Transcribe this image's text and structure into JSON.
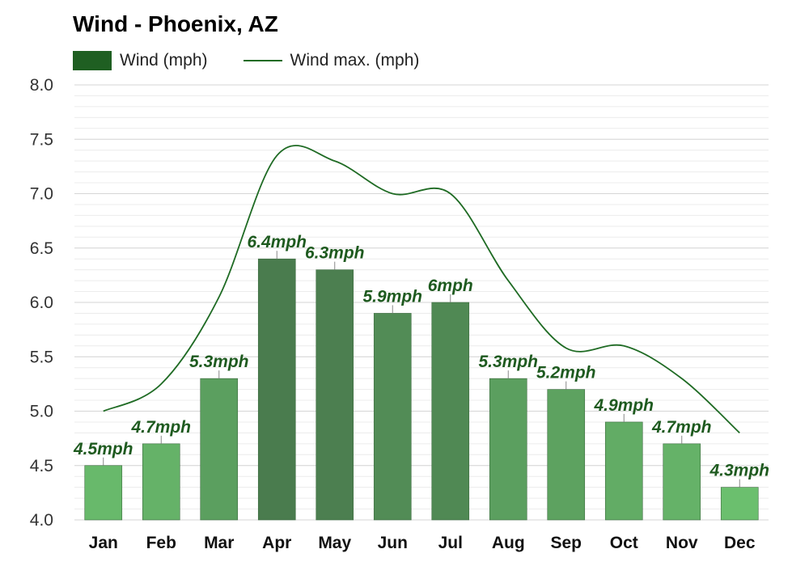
{
  "chart_data": {
    "type": "bar",
    "title": "Wind - Phoenix, AZ",
    "categories": [
      "Jan",
      "Feb",
      "Mar",
      "Apr",
      "May",
      "Jun",
      "Jul",
      "Aug",
      "Sep",
      "Oct",
      "Nov",
      "Dec"
    ],
    "series": [
      {
        "name": "Wind (mph)",
        "type": "bar",
        "values": [
          4.5,
          4.7,
          5.3,
          6.4,
          6.3,
          5.9,
          6.0,
          5.3,
          5.2,
          4.9,
          4.7,
          4.3
        ]
      },
      {
        "name": "Wind max. (mph)",
        "type": "line",
        "values": [
          5.0,
          5.25,
          6.05,
          7.35,
          7.3,
          7.0,
          7.0,
          6.2,
          5.58,
          5.6,
          5.3,
          4.8
        ]
      }
    ],
    "data_labels": [
      "4.5mph",
      "4.7mph",
      "5.3mph",
      "6.4mph",
      "6.3mph",
      "5.9mph",
      "6mph",
      "5.3mph",
      "5.2mph",
      "4.9mph",
      "4.7mph",
      "4.3mph"
    ],
    "y_ticks": [
      "4.0",
      "4.5",
      "5.0",
      "5.5",
      "6.0",
      "6.5",
      "7.0",
      "7.5",
      "8.0"
    ],
    "ylim": [
      4.0,
      8.0
    ],
    "grid": true,
    "legend_position": "top-left",
    "colors": {
      "bar_low": "#6bbf6e",
      "bar_high": "#4a7c4e",
      "line": "#1f6b24",
      "legend_bar": "#1f5f22",
      "label": "#1e5a1f"
    }
  }
}
